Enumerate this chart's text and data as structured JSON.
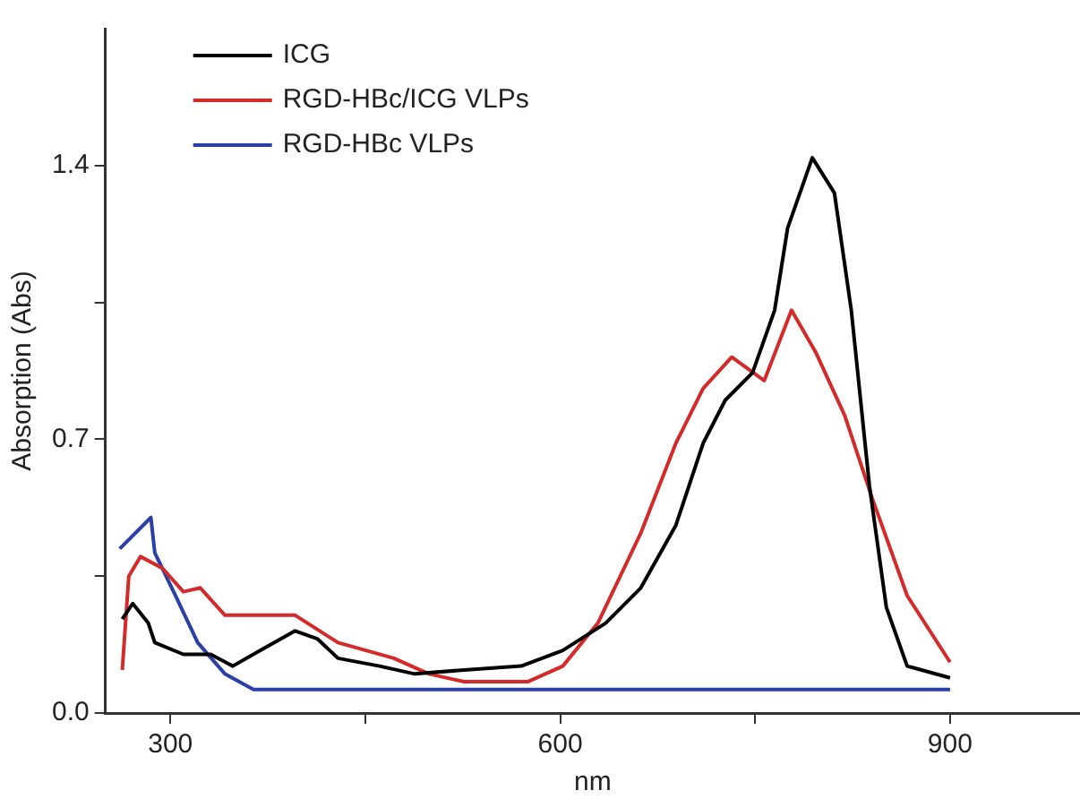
{
  "chart_data": {
    "type": "line",
    "xlabel": "nm",
    "ylabel": "Absorption (Abs)",
    "xlim": [
      250,
      1000
    ],
    "ylim": [
      0,
      1.75
    ],
    "xticks": [
      300,
      {
        "value": 450,
        "label": null
      },
      600,
      {
        "value": 750,
        "label": null
      },
      900
    ],
    "yticks": [
      {
        "value": 0,
        "label": "0.0"
      },
      {
        "value": 0.35,
        "label": null
      },
      0.7,
      {
        "value": 1.05,
        "label": null
      },
      1.4
    ],
    "grid": false,
    "legend": "top left",
    "marker": "none",
    "line_style": "solid",
    "series": [
      {
        "name": "ICG",
        "color": "#000000",
        "x": [
          263,
          271,
          283,
          288,
          310,
          331,
          348,
          369,
          396,
          413,
          429,
          461,
          488,
          526,
          570,
          602,
          635,
          662,
          689,
          710,
          727,
          748,
          765,
          775,
          794,
          811,
          824,
          838,
          851,
          867,
          900
        ],
        "values": [
          0.24,
          0.28,
          0.23,
          0.18,
          0.15,
          0.15,
          0.12,
          0.16,
          0.21,
          0.19,
          0.14,
          0.12,
          0.1,
          0.11,
          0.12,
          0.16,
          0.23,
          0.32,
          0.48,
          0.69,
          0.8,
          0.87,
          1.03,
          1.24,
          1.42,
          1.33,
          1.03,
          0.58,
          0.27,
          0.12,
          0.09
        ]
      },
      {
        "name": "RGD-HBc/ICG VLPs",
        "color": "#d42a2a",
        "x": [
          263,
          268,
          277,
          294,
          310,
          323,
          342,
          364,
          396,
          429,
          472,
          499,
          526,
          575,
          602,
          629,
          662,
          689,
          710,
          732,
          757,
          778,
          797,
          819,
          840,
          867,
          900
        ],
        "values": [
          0.11,
          0.35,
          0.4,
          0.37,
          0.31,
          0.32,
          0.25,
          0.25,
          0.25,
          0.18,
          0.14,
          0.1,
          0.08,
          0.08,
          0.12,
          0.23,
          0.46,
          0.69,
          0.83,
          0.91,
          0.85,
          1.03,
          0.92,
          0.76,
          0.55,
          0.3,
          0.13
        ]
      },
      {
        "name": "RGD-HBc VLPs",
        "color": "#2a3fa8",
        "x": [
          261,
          285,
          288,
          304,
          321,
          342,
          364,
          472,
          689,
          900
        ],
        "values": [
          0.42,
          0.5,
          0.41,
          0.3,
          0.18,
          0.1,
          0.06,
          0.06,
          0.06,
          0.06
        ]
      }
    ]
  }
}
